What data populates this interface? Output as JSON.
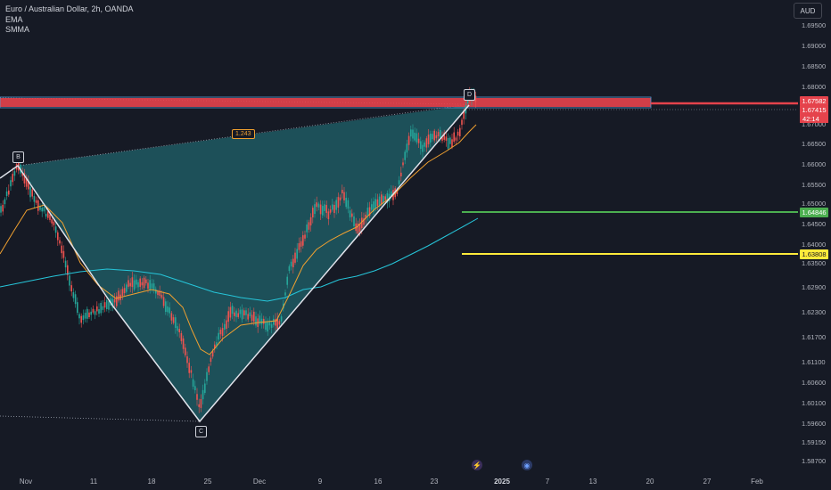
{
  "header": {
    "symbol_title": "Euro / Australian Dollar, 2h, OANDA",
    "indicators": [
      "EMA",
      "SMMA"
    ],
    "currency_button": "AUD"
  },
  "price_axis": {
    "ticks": [
      "1.69500",
      "1.69000",
      "1.68500",
      "1.68000",
      "1.67000",
      "1.66500",
      "1.66000",
      "1.65500",
      "1.65000",
      "1.64500",
      "1.64000",
      "1.63500",
      "1.62900",
      "1.62300",
      "1.61700",
      "1.61100",
      "1.60600",
      "1.60100",
      "1.59600",
      "1.59150",
      "1.58700"
    ],
    "tags": {
      "red_level": "1.67582",
      "last_price": "1.67415",
      "countdown": "42:14",
      "green_level": "1.64846",
      "yellow_level": "1.63808"
    }
  },
  "time_axis": {
    "labels": [
      "Nov",
      "11",
      "18",
      "25",
      "Dec",
      "9",
      "16",
      "23",
      "2025",
      "7",
      "13",
      "20",
      "27",
      "Feb"
    ]
  },
  "pattern": {
    "labels": [
      "B",
      "C",
      "D"
    ],
    "ratio": "1.243"
  },
  "colors": {
    "background": "#161a25",
    "candle_up": "#26a69a",
    "candle_down": "#ef5350",
    "red_zone": "#e5434c",
    "green_level": "#4caf50",
    "yellow_level": "#ffeb3b",
    "ema": "#f0a030",
    "smma": "#26c6da",
    "pattern_fill": "#1e5a63"
  },
  "icons": [
    "lightning-icon",
    "globe-icon"
  ]
}
